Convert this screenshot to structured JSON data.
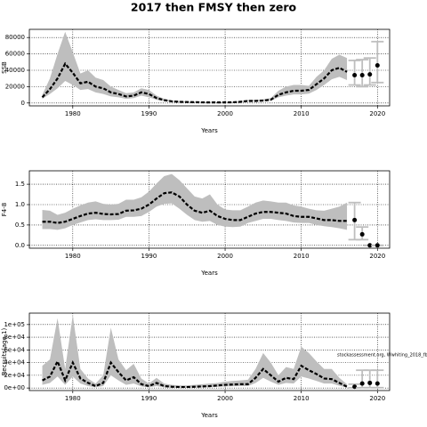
{
  "chart_data": [
    {
      "type": "line",
      "title": "2017 then FMSY then zero",
      "xlabel": "Years",
      "ylabel": "SSB",
      "x": [
        1976,
        1977,
        1978,
        1979,
        1980,
        1981,
        1982,
        1983,
        1984,
        1985,
        1986,
        1987,
        1988,
        1989,
        1990,
        1991,
        1992,
        1993,
        1994,
        1995,
        1996,
        1997,
        1998,
        1999,
        2000,
        2001,
        2002,
        2003,
        2004,
        2005,
        2006,
        2007,
        2008,
        2009,
        2010,
        2011,
        2012,
        2013,
        2014,
        2015,
        2016
      ],
      "values": [
        7000,
        17000,
        30000,
        48000,
        37000,
        24000,
        26000,
        20000,
        18000,
        13000,
        11000,
        8000,
        9000,
        13000,
        11000,
        6000,
        3500,
        2000,
        1500,
        1200,
        1000,
        800,
        700,
        700,
        700,
        900,
        1500,
        2500,
        2500,
        3000,
        4000,
        10000,
        13000,
        15000,
        15000,
        16000,
        23000,
        30000,
        40000,
        43000,
        38000
      ],
      "upper": [
        10000,
        30000,
        60000,
        87000,
        62000,
        36000,
        40000,
        31000,
        28000,
        20000,
        16000,
        12000,
        13000,
        18000,
        16000,
        9000,
        5000,
        3000,
        2500,
        2000,
        1700,
        1500,
        1300,
        1300,
        1300,
        1600,
        2500,
        3800,
        3800,
        4500,
        6000,
        15000,
        20000,
        22000,
        22000,
        21000,
        32000,
        40000,
        54000,
        59000,
        55000
      ],
      "lower": [
        5000,
        11000,
        18000,
        27000,
        22000,
        16000,
        17000,
        13000,
        11000,
        8000,
        7000,
        5000,
        6000,
        9000,
        7000,
        4000,
        2200,
        1200,
        900,
        700,
        600,
        500,
        400,
        400,
        400,
        500,
        900,
        1600,
        1600,
        2000,
        2800,
        7000,
        9000,
        10500,
        10500,
        11500,
        16000,
        22000,
        29000,
        32000,
        28000
      ],
      "forecast": {
        "x": [
          2017,
          2018,
          2019,
          2020
        ],
        "values": [
          34000,
          34000,
          35000,
          46000
        ],
        "lower": [
          22000,
          20000,
          22000,
          25000
        ],
        "upper": [
          52000,
          53000,
          55000,
          75000
        ]
      },
      "color": "#000000",
      "band_color": "#bebebe",
      "bar_color": "#bebebe",
      "xlim": [
        1974.3,
        2021.6
      ],
      "xticks": [
        1980,
        1990,
        2000,
        2010,
        2020
      ],
      "ylim": [
        -3500,
        90000
      ],
      "yticks": [
        0,
        20000,
        40000,
        60000,
        80000
      ],
      "grid": true
    },
    {
      "type": "line",
      "xlabel": "Years",
      "ylabel": "F4-8",
      "x": [
        1976,
        1977,
        1978,
        1979,
        1980,
        1981,
        1982,
        1983,
        1984,
        1985,
        1986,
        1987,
        1988,
        1989,
        1990,
        1991,
        1992,
        1993,
        1994,
        1995,
        1996,
        1997,
        1998,
        1999,
        2000,
        2001,
        2002,
        2003,
        2004,
        2005,
        2006,
        2007,
        2008,
        2009,
        2010,
        2011,
        2012,
        2013,
        2014,
        2015,
        2016
      ],
      "values": [
        0.58,
        0.58,
        0.55,
        0.58,
        0.65,
        0.72,
        0.78,
        0.8,
        0.77,
        0.76,
        0.77,
        0.85,
        0.86,
        0.9,
        1.0,
        1.15,
        1.28,
        1.3,
        1.2,
        1.0,
        0.85,
        0.8,
        0.85,
        0.72,
        0.65,
        0.62,
        0.62,
        0.7,
        0.78,
        0.82,
        0.82,
        0.8,
        0.78,
        0.72,
        0.7,
        0.7,
        0.66,
        0.62,
        0.62,
        0.6,
        0.6
      ],
      "upper": [
        0.87,
        0.85,
        0.75,
        0.8,
        0.9,
        0.98,
        1.05,
        1.08,
        1.02,
        1.0,
        1.02,
        1.12,
        1.12,
        1.18,
        1.32,
        1.52,
        1.7,
        1.75,
        1.6,
        1.4,
        1.2,
        1.15,
        1.25,
        1.0,
        0.88,
        0.86,
        0.86,
        0.95,
        1.05,
        1.1,
        1.08,
        1.05,
        1.05,
        0.98,
        0.95,
        0.9,
        0.86,
        0.85,
        0.9,
        0.95,
        1.05
      ],
      "lower": [
        0.4,
        0.4,
        0.38,
        0.42,
        0.5,
        0.56,
        0.62,
        0.64,
        0.62,
        0.62,
        0.63,
        0.7,
        0.7,
        0.72,
        0.82,
        0.95,
        1.02,
        1.03,
        0.9,
        0.75,
        0.62,
        0.58,
        0.6,
        0.5,
        0.46,
        0.45,
        0.46,
        0.55,
        0.6,
        0.65,
        0.65,
        0.62,
        0.6,
        0.56,
        0.55,
        0.55,
        0.5,
        0.47,
        0.45,
        0.42,
        0.38
      ],
      "forecast": {
        "x": [
          2017,
          2018,
          2019,
          2020
        ],
        "values": [
          0.62,
          0.27,
          0,
          0
        ],
        "lower": [
          0.14,
          0.14,
          0,
          0
        ],
        "upper": [
          1.05,
          0.45,
          0,
          0
        ]
      },
      "color": "#000000",
      "band_color": "#bebebe",
      "bar_color": "#bebebe",
      "xlim": [
        1974.3,
        2021.6
      ],
      "xticks": [
        1980,
        1990,
        2000,
        2010,
        2020
      ],
      "ylim": [
        -0.07,
        1.83
      ],
      "yticks": [
        {
          "value": 0,
          "label": "0.0"
        },
        {
          "value": 0.5,
          "label": "0.5"
        },
        {
          "value": 1,
          "label": "1.0"
        },
        {
          "value": 1.5,
          "label": "1.5"
        }
      ],
      "grid": true
    },
    {
      "type": "line",
      "xlabel": "Years",
      "ylabel": "Recruits(age 1)",
      "annotation": "stockassessment.org, Wwhiting_2018_fb",
      "x": [
        1976,
        1977,
        1978,
        1979,
        1980,
        1981,
        1982,
        1983,
        1984,
        1985,
        1986,
        1987,
        1988,
        1989,
        1990,
        1991,
        1992,
        1993,
        1994,
        1995,
        1996,
        1997,
        1998,
        1999,
        2000,
        2001,
        2002,
        2003,
        2004,
        2005,
        2006,
        2007,
        2008,
        2009,
        2010,
        2011,
        2012,
        2013,
        2014,
        2015,
        2016
      ],
      "values": [
        12000,
        18000,
        42000,
        12000,
        40000,
        15000,
        8000,
        3000,
        8000,
        40000,
        25000,
        12000,
        17000,
        6000,
        3000,
        8000,
        3000,
        2000,
        1500,
        1500,
        2000,
        2500,
        3000,
        4000,
        5000,
        5500,
        6000,
        6000,
        16000,
        30000,
        20000,
        10000,
        16000,
        14000,
        35000,
        28000,
        22000,
        15000,
        14000,
        8000,
        2000
      ],
      "upper": [
        35000,
        45000,
        110000,
        30000,
        115000,
        30000,
        15000,
        7000,
        20000,
        95000,
        45000,
        28000,
        38000,
        15000,
        7000,
        16000,
        7000,
        5000,
        4000,
        4000,
        5000,
        6000,
        7000,
        8000,
        10000,
        11000,
        12000,
        13000,
        30000,
        55000,
        40000,
        20000,
        33000,
        30000,
        65000,
        55000,
        42000,
        30000,
        30000,
        16000,
        6000
      ],
      "lower": [
        5000,
        8000,
        18000,
        5000,
        18000,
        7000,
        3000,
        1000,
        3000,
        20000,
        12000,
        5000,
        7000,
        2500,
        1000,
        3000,
        1000,
        800,
        600,
        600,
        800,
        1000,
        1300,
        1800,
        2500,
        2800,
        3000,
        3000,
        8000,
        16000,
        10000,
        5000,
        8000,
        7000,
        18000,
        15000,
        11000,
        7000,
        7000,
        3500,
        800
      ],
      "forecast": {
        "x": [
          2017,
          2018,
          2019,
          2020
        ],
        "values": [
          2000,
          7000,
          8000,
          7000
        ],
        "lower": [
          300,
          500,
          500,
          500
        ],
        "upper": [
          6000,
          28000,
          28000,
          28000
        ]
      },
      "color": "#000000",
      "band_color": "#bebebe",
      "bar_color": "#bebebe",
      "xlim": [
        1974.3,
        2021.6
      ],
      "xticks": [
        1980,
        1990,
        2000,
        2010,
        2020
      ],
      "ylim": [
        -4000,
        118000
      ],
      "yticks": [
        {
          "value": 0,
          "label": "0e+00"
        },
        {
          "value": 20000,
          "label": "2e+04"
        },
        {
          "value": 40000,
          "label": "4e+04"
        },
        {
          "value": 60000,
          "label": "6e+04"
        },
        {
          "value": 80000,
          "label": "8e+04"
        },
        {
          "value": 100000,
          "label": "1e+05"
        }
      ],
      "grid": true
    }
  ]
}
